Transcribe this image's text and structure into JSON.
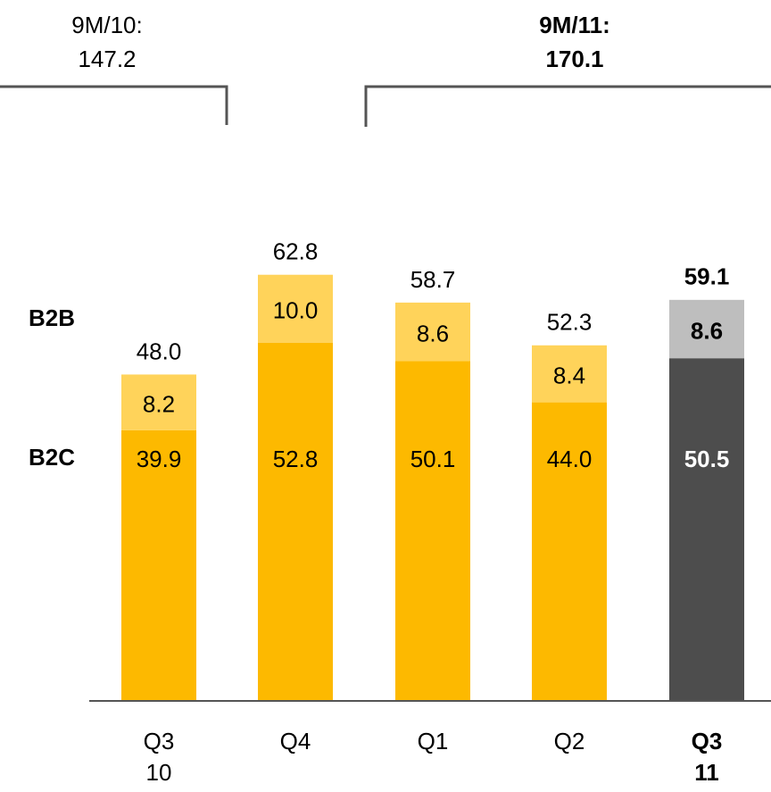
{
  "chart_data": {
    "type": "bar",
    "stacked": true,
    "categories": [
      {
        "line1": "Q3",
        "line2": "10",
        "highlight": false
      },
      {
        "line1": "Q4",
        "line2": "",
        "highlight": false
      },
      {
        "line1": "Q1",
        "line2": "",
        "highlight": false
      },
      {
        "line1": "Q2",
        "line2": "",
        "highlight": false
      },
      {
        "line1": "Q3",
        "line2": "11",
        "highlight": true
      }
    ],
    "series": [
      {
        "name": "B2C",
        "values": [
          39.9,
          52.8,
          50.1,
          44.0,
          50.5
        ],
        "labels": [
          "39.9",
          "52.8",
          "50.1",
          "44.0",
          "50.5"
        ]
      },
      {
        "name": "B2B",
        "values": [
          8.2,
          10.0,
          8.6,
          8.4,
          8.6
        ],
        "labels": [
          "8.2",
          "10.0",
          "8.6",
          "8.4",
          "8.6"
        ]
      }
    ],
    "totals": [
      48.0,
      62.8,
      58.7,
      52.3,
      59.1
    ],
    "total_labels": [
      "48.0",
      "62.8",
      "58.7",
      "52.3",
      "59.1"
    ],
    "ylim": [
      0,
      70
    ],
    "grid": false,
    "legend_position": "left",
    "annotations": [
      {
        "line1": "9M/10:",
        "line2": "147.2",
        "bold": false,
        "spans_categories": [
          0,
          0
        ]
      },
      {
        "line1": "9M/11:",
        "line2": "170.1",
        "bold": true,
        "spans_categories": [
          2,
          4
        ]
      }
    ],
    "colors": {
      "B2C": "#FDB900",
      "B2B": "#FFD35A",
      "highlight_B2C": "#4D4D4D",
      "highlight_B2B": "#BEBEBE",
      "axis": "#555555",
      "text": "#000000",
      "highlight_text": "#ffffff"
    }
  }
}
